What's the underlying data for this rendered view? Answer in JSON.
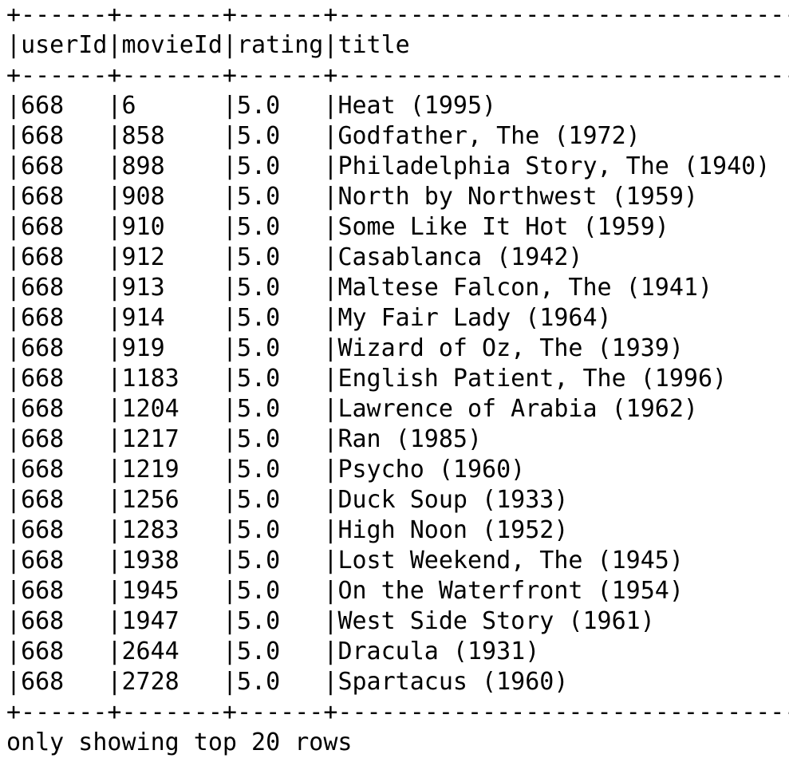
{
  "table": {
    "border_line": "+------+-------+------+--------------------------------+",
    "header": [
      "userId",
      "movieId",
      "rating",
      "title"
    ],
    "widths": [
      6,
      7,
      6,
      32
    ],
    "rows": [
      [
        "668",
        "6",
        "5.0",
        "Heat (1995)"
      ],
      [
        "668",
        "858",
        "5.0",
        "Godfather, The (1972)"
      ],
      [
        "668",
        "898",
        "5.0",
        "Philadelphia Story, The (1940)"
      ],
      [
        "668",
        "908",
        "5.0",
        "North by Northwest (1959)"
      ],
      [
        "668",
        "910",
        "5.0",
        "Some Like It Hot (1959)"
      ],
      [
        "668",
        "912",
        "5.0",
        "Casablanca (1942)"
      ],
      [
        "668",
        "913",
        "5.0",
        "Maltese Falcon, The (1941)"
      ],
      [
        "668",
        "914",
        "5.0",
        "My Fair Lady (1964)"
      ],
      [
        "668",
        "919",
        "5.0",
        "Wizard of Oz, The (1939)"
      ],
      [
        "668",
        "1183",
        "5.0",
        "English Patient, The (1996)"
      ],
      [
        "668",
        "1204",
        "5.0",
        "Lawrence of Arabia (1962)"
      ],
      [
        "668",
        "1217",
        "5.0",
        "Ran (1985)"
      ],
      [
        "668",
        "1219",
        "5.0",
        "Psycho (1960)"
      ],
      [
        "668",
        "1256",
        "5.0",
        "Duck Soup (1933)"
      ],
      [
        "668",
        "1283",
        "5.0",
        "High Noon (1952)"
      ],
      [
        "668",
        "1938",
        "5.0",
        "Lost Weekend, The (1945)"
      ],
      [
        "668",
        "1945",
        "5.0",
        "On the Waterfront (1954)"
      ],
      [
        "668",
        "1947",
        "5.0",
        "West Side Story (1961)"
      ],
      [
        "668",
        "2644",
        "5.0",
        "Dracula (1931)"
      ],
      [
        "668",
        "2728",
        "5.0",
        "Spartacus (1960)"
      ]
    ]
  },
  "footer": "only showing top 20 rows"
}
